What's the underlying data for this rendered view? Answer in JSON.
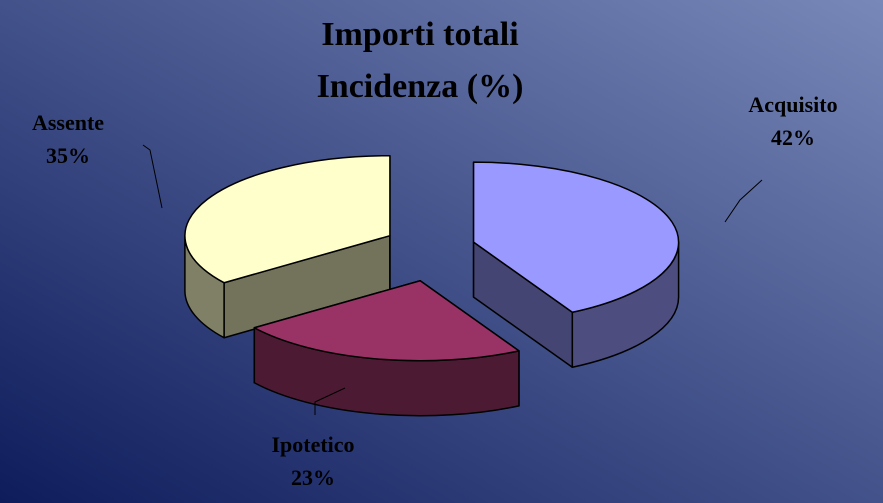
{
  "chart_data": {
    "type": "pie3d",
    "title": "Importi totali",
    "subtitle": "Incidenza (%)",
    "categories": [
      "Acquisito",
      "Ipotetico",
      "Assente"
    ],
    "values": [
      42,
      23,
      35
    ],
    "value_labels": [
      "42%",
      "23%",
      "35%"
    ],
    "colors": [
      "#9999ff",
      "#993366",
      "#ffffcc"
    ]
  }
}
